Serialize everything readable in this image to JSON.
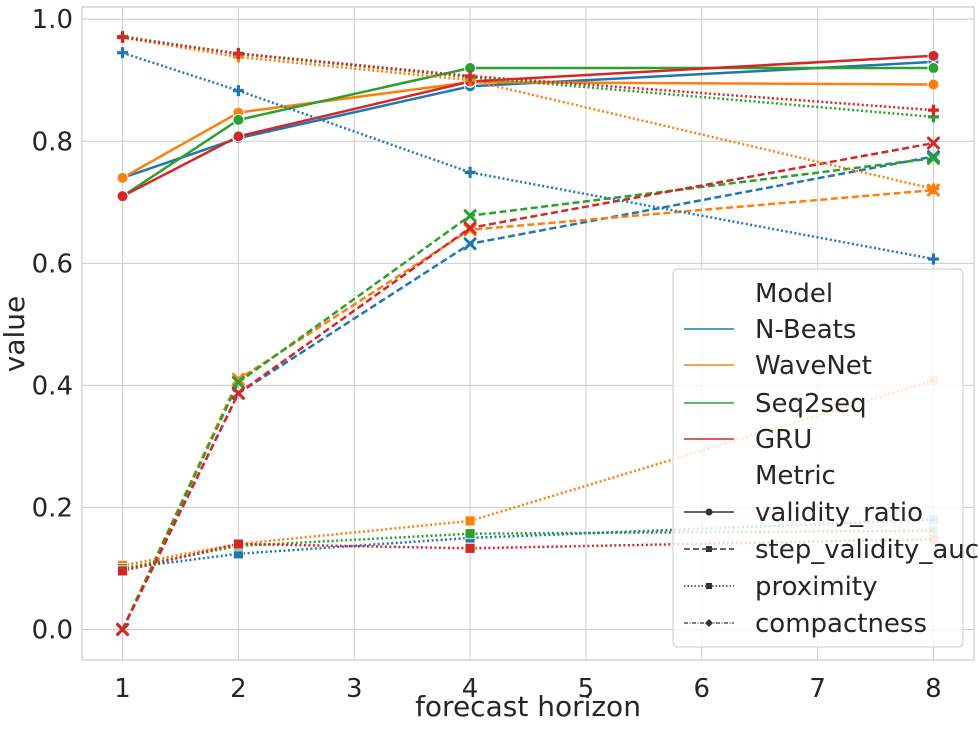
{
  "chart_data": {
    "type": "line",
    "title": "",
    "xlabel": "forecast horizon",
    "ylabel": "value",
    "xlim": [
      0.65,
      8.35
    ],
    "ylim": [
      -0.05,
      1.02
    ],
    "x": [
      1,
      2,
      4,
      8
    ],
    "xticks": [
      1,
      2,
      3,
      4,
      5,
      6,
      7,
      8
    ],
    "yticks": [
      0.0,
      0.2,
      0.4,
      0.6,
      0.8,
      1.0
    ],
    "xtick_labels": [
      "1",
      "2",
      "3",
      "4",
      "5",
      "6",
      "7",
      "8"
    ],
    "ytick_labels": [
      "0.0",
      "0.2",
      "0.4",
      "0.6",
      "0.8",
      "1.0"
    ],
    "grid": true,
    "legend_position": "right",
    "legend": {
      "model_header": "Model",
      "metric_header": "Metric",
      "models": [
        {
          "name": "N-Beats",
          "color": "#1f77b4"
        },
        {
          "name": "WaveNet",
          "color": "#ff7f0e"
        },
        {
          "name": "Seq2seq",
          "color": "#2ca02c"
        },
        {
          "name": "GRU",
          "color": "#d62728"
        }
      ],
      "metrics": [
        {
          "name": "validity_ratio",
          "dash": "solid",
          "marker": "circle"
        },
        {
          "name": "step_validity_auc",
          "dash": "dashed",
          "marker": "x"
        },
        {
          "name": "proximity",
          "dash": "dotted",
          "marker": "square"
        },
        {
          "name": "compactness",
          "dash": "dashdot",
          "marker": "plus"
        }
      ]
    },
    "series": [
      {
        "name": "N-Beats / validity_ratio",
        "model": "N-Beats",
        "metric": "validity_ratio",
        "values": [
          0.74,
          0.805,
          0.89,
          0.93
        ]
      },
      {
        "name": "WaveNet / validity_ratio",
        "model": "WaveNet",
        "metric": "validity_ratio",
        "values": [
          0.74,
          0.847,
          0.897,
          0.893
        ]
      },
      {
        "name": "Seq2seq / validity_ratio",
        "model": "Seq2seq",
        "metric": "validity_ratio",
        "values": [
          0.71,
          0.835,
          0.92,
          0.92
        ]
      },
      {
        "name": "GRU / validity_ratio",
        "model": "GRU",
        "metric": "validity_ratio",
        "values": [
          0.71,
          0.808,
          0.898,
          0.94
        ]
      },
      {
        "name": "N-Beats / step_validity_auc",
        "model": "N-Beats",
        "metric": "step_validity_auc",
        "values": [
          0.0,
          0.387,
          0.632,
          0.775
        ]
      },
      {
        "name": "WaveNet / step_validity_auc",
        "model": "WaveNet",
        "metric": "step_validity_auc",
        "values": [
          0.0,
          0.41,
          0.655,
          0.72
        ]
      },
      {
        "name": "Seq2seq / step_validity_auc",
        "model": "Seq2seq",
        "metric": "step_validity_auc",
        "values": [
          0.0,
          0.405,
          0.678,
          0.772
        ]
      },
      {
        "name": "GRU / step_validity_auc",
        "model": "GRU",
        "metric": "step_validity_auc",
        "values": [
          0.0,
          0.387,
          0.658,
          0.797
        ]
      },
      {
        "name": "N-Beats / proximity",
        "model": "N-Beats",
        "metric": "proximity",
        "values": [
          0.1,
          0.124,
          0.15,
          0.18
        ]
      },
      {
        "name": "WaveNet / proximity",
        "model": "WaveNet",
        "metric": "proximity",
        "values": [
          0.105,
          0.14,
          0.178,
          0.408
        ]
      },
      {
        "name": "Seq2seq / proximity",
        "model": "Seq2seq",
        "metric": "proximity",
        "values": [
          0.1,
          0.137,
          0.157,
          0.162
        ]
      },
      {
        "name": "GRU / proximity",
        "model": "GRU",
        "metric": "proximity",
        "values": [
          0.096,
          0.14,
          0.133,
          0.148
        ]
      },
      {
        "name": "N-Beats / compactness",
        "model": "N-Beats",
        "metric": "compactness",
        "values": [
          0.945,
          0.883,
          0.749,
          0.607
        ]
      },
      {
        "name": "WaveNet / compactness",
        "model": "WaveNet",
        "metric": "compactness",
        "values": [
          0.97,
          0.938,
          0.9,
          0.722
        ]
      },
      {
        "name": "Seq2seq / compactness",
        "model": "Seq2seq",
        "metric": "compactness",
        "values": [
          0.972,
          0.943,
          0.905,
          0.84
        ]
      },
      {
        "name": "GRU / compactness",
        "model": "GRU",
        "metric": "compactness",
        "values": [
          0.97,
          0.944,
          0.907,
          0.851
        ]
      }
    ]
  }
}
